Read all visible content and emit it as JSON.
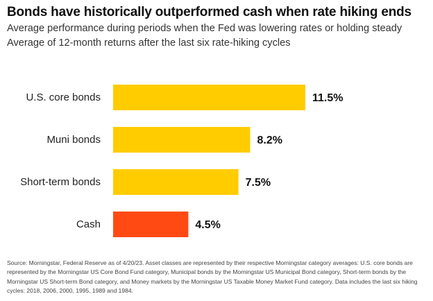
{
  "title": "Bonds have historically outperformed cash when rate hiking ends",
  "subtitle": "Average performance during periods when the Fed was lowering rates or holding steady Average of 12-month returns after the last six rate-hiking cycles",
  "source": "Source: Morningstar, Federal Reserve as of 4/20/23. Asset classes are represented by their respective Morningstar category averages: U.S. core bonds are represented by the Morningstar US Core Bond Fund category, Municipal bonds by the Morningstar US Municipal Bond category, Short-term bonds by the Morningstar US Short-term Bond category, and Money markets by the Morningstar US Taxable Money Market Fund category. Data includes the last six hiking cycles: 2018, 2006, 2000, 1995, 1989 and 1984.",
  "colors": {
    "bond": "#FFCC00",
    "cash": "#FF4A14"
  },
  "chart_data": {
    "type": "bar",
    "orientation": "horizontal",
    "title": "Bonds have historically outperformed cash when rate hiking ends",
    "subtitle": "Average performance during periods when the Fed was lowering rates or holding steady Average of 12-month returns after the last six rate-hiking cycles",
    "categories": [
      "U.S. core bonds",
      "Muni bonds",
      "Short-term bonds",
      "Cash"
    ],
    "values": [
      11.5,
      8.2,
      7.5,
      4.5
    ],
    "value_labels": [
      "11.5%",
      "8.2%",
      "7.5%",
      "4.5%"
    ],
    "bar_colors": [
      "#FFCC00",
      "#FFCC00",
      "#FFCC00",
      "#FF4A14"
    ],
    "unit": "%",
    "xlim": [
      0,
      11.5
    ],
    "grid": false,
    "legend": "none"
  }
}
